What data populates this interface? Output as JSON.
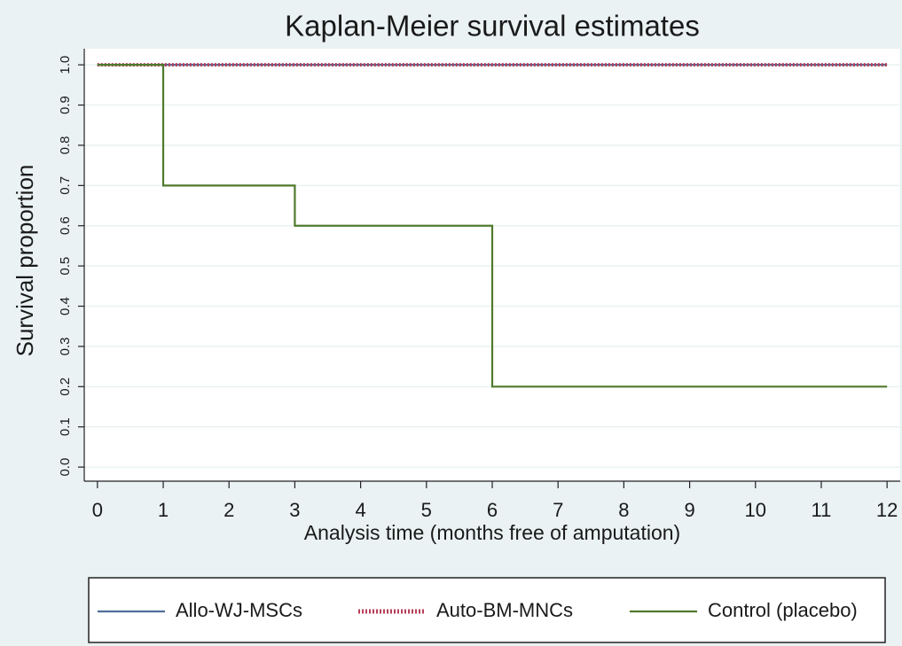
{
  "chart_data": {
    "type": "line",
    "title": "Kaplan-Meier survival estimates",
    "x_label": "Analysis time (months free of amputation)",
    "y_label": "Survival proportion",
    "xlim": [
      -0.2,
      12.2
    ],
    "xticks": [
      0,
      1,
      2,
      3,
      4,
      5,
      6,
      7,
      8,
      9,
      10,
      11,
      12
    ],
    "ylim": [
      -0.035,
      1.04
    ],
    "yticks": [
      {
        "value": 0,
        "label": "0.0"
      },
      0.1,
      0.2,
      0.3,
      0.4,
      0.5,
      0.6,
      0.7,
      0.8,
      0.9,
      {
        "value": 1,
        "label": "1.0"
      }
    ],
    "grid": true,
    "legend": "bottom",
    "series": [
      {
        "name": "Allo-WJ-MSCs",
        "color": "#4f6f9a",
        "x": [
          0,
          12
        ],
        "values": [
          1,
          1
        ]
      },
      {
        "name": "Auto-BM-MNCs",
        "color": "#b8405a",
        "dash": "2 2",
        "x": [
          0,
          12
        ],
        "values": [
          1,
          1
        ]
      },
      {
        "name": "Control (placebo)",
        "color": "#4f7a2c",
        "x": [
          0,
          1,
          1,
          3,
          3,
          6,
          6,
          12
        ],
        "values": [
          1,
          1,
          0.7,
          0.7,
          0.6,
          0.6,
          0.2,
          0.2
        ]
      }
    ]
  }
}
